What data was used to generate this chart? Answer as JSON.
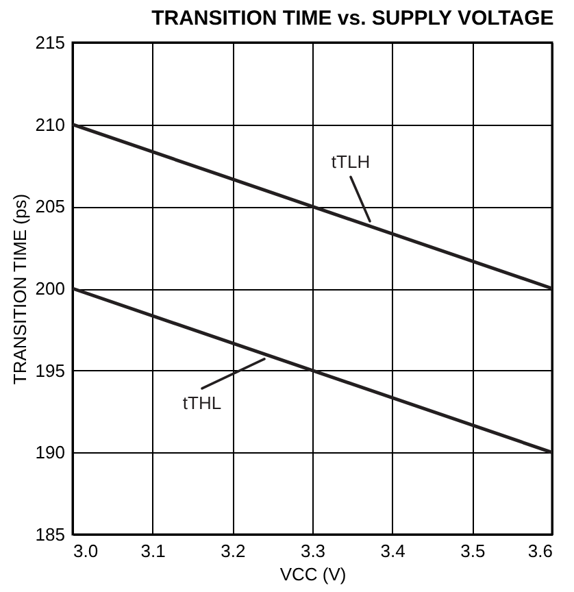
{
  "chart_data": {
    "type": "line",
    "title": "TRANSITION TIME vs. SUPPLY VOLTAGE",
    "xlabel": "VCC (V)",
    "ylabel": "TRANSITION TIME (ps)",
    "xlim": [
      3.0,
      3.6
    ],
    "xticks": [
      {
        "value": 3.0,
        "label": "3.0"
      },
      {
        "value": 3.1,
        "label": "3.1"
      },
      {
        "value": 3.2,
        "label": "3.2"
      },
      {
        "value": 3.3,
        "label": "3.3"
      },
      {
        "value": 3.4,
        "label": "3.4"
      },
      {
        "value": 3.5,
        "label": "3.5"
      },
      {
        "value": 3.6,
        "label": "3.6"
      }
    ],
    "ylim": [
      185,
      215
    ],
    "yticks": [
      185,
      190,
      195,
      200,
      205,
      210,
      215
    ],
    "grid": true,
    "line_style": "solid",
    "marker": "none",
    "x": [
      3.0,
      3.6
    ],
    "series": [
      {
        "name": "tTLH",
        "color": "#231f20",
        "values": [
          210,
          200
        ]
      },
      {
        "name": "tTHL",
        "color": "#231f20",
        "values": [
          200,
          190
        ]
      }
    ]
  }
}
